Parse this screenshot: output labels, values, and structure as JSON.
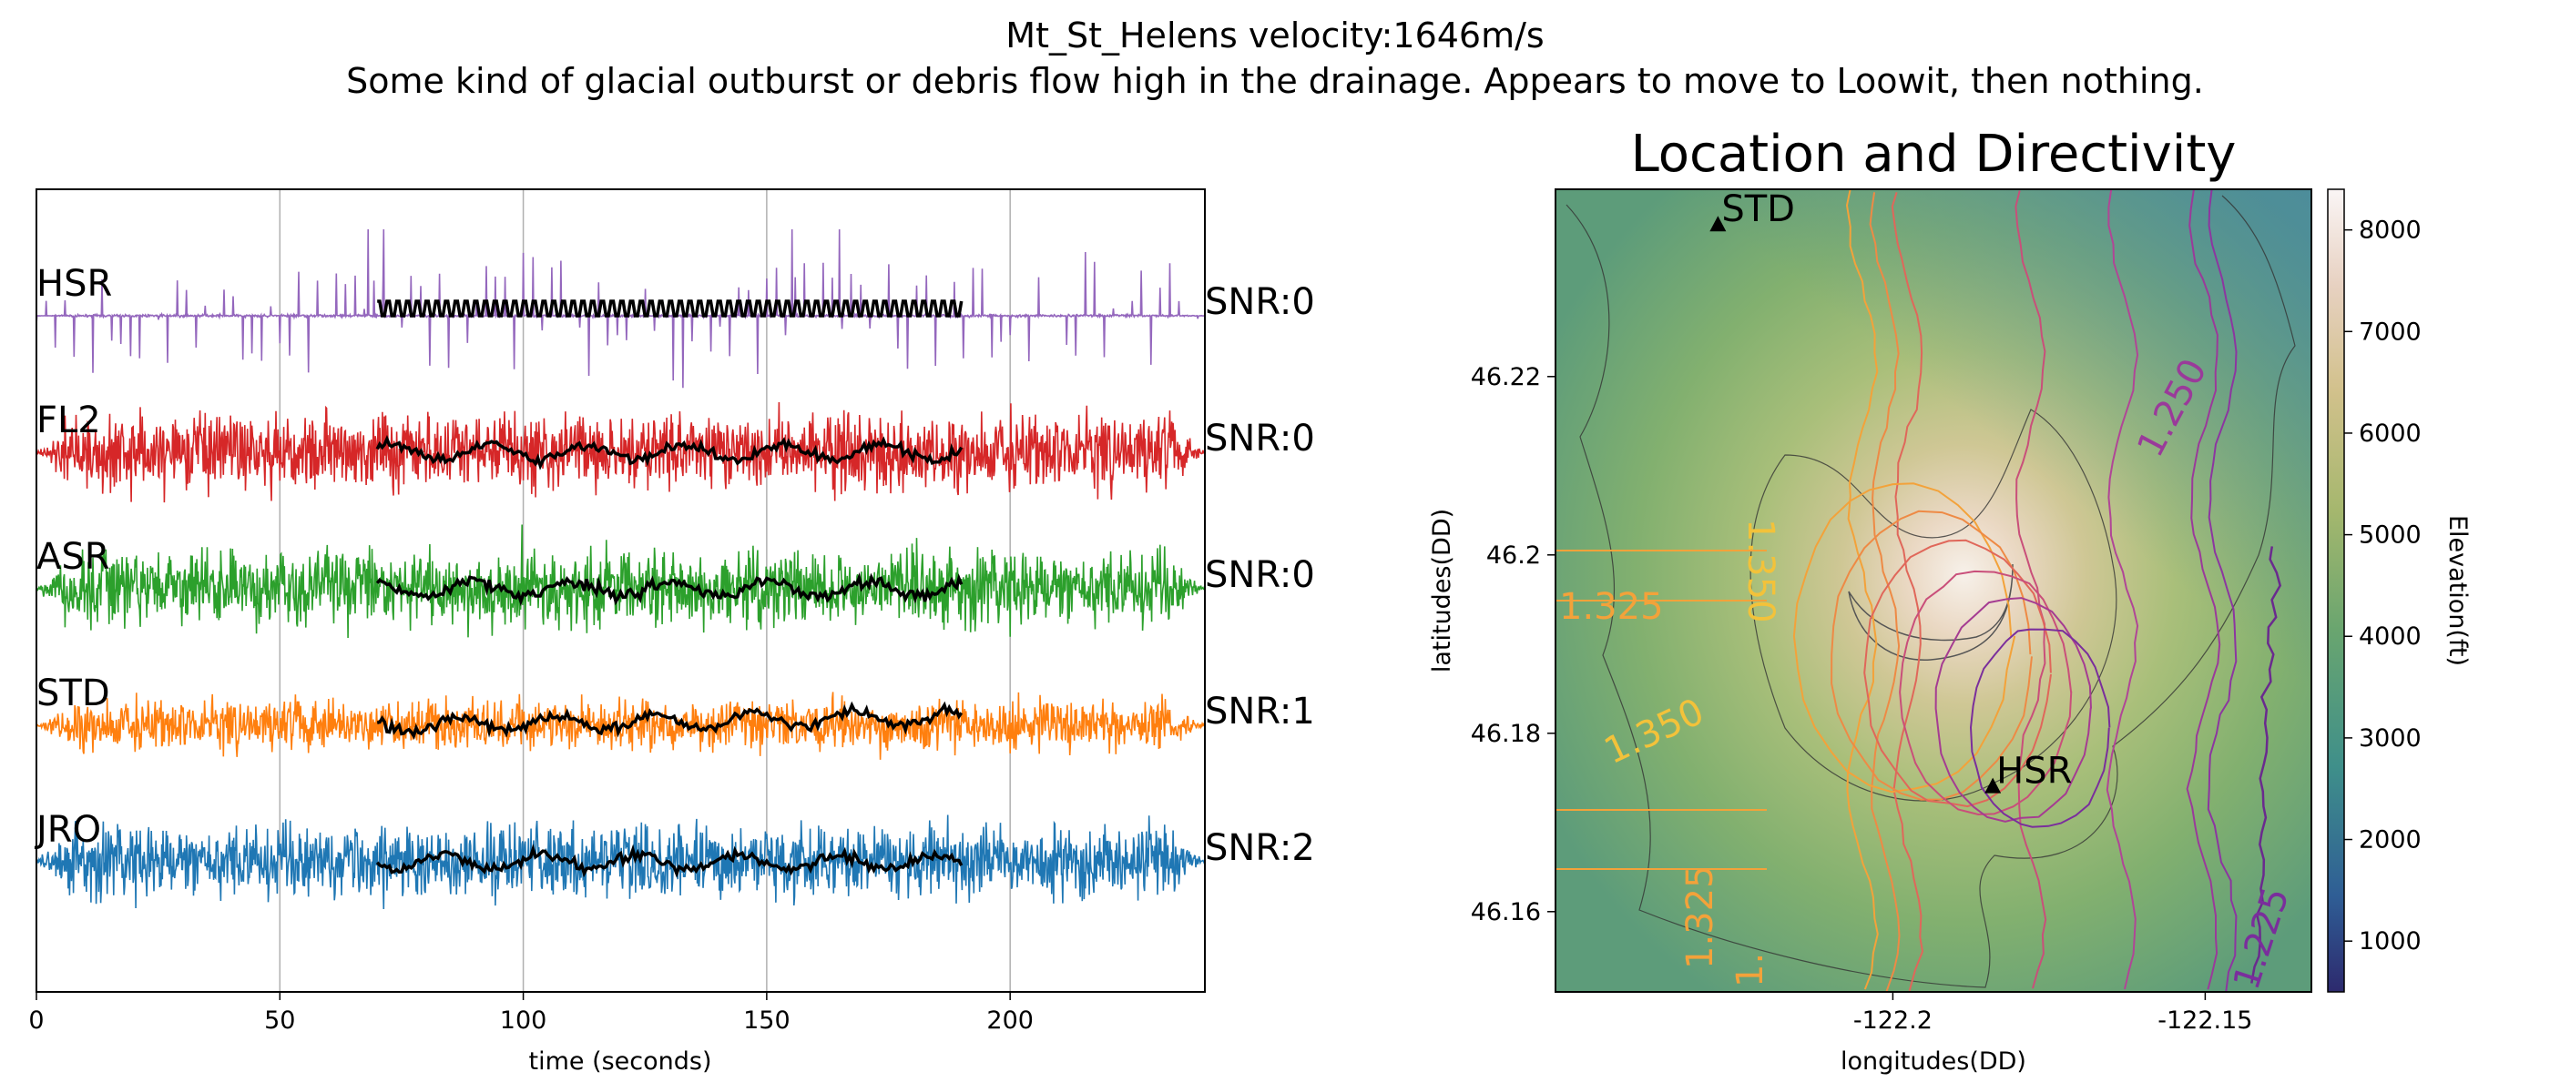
{
  "suptitle": {
    "line1": "Mt_St_Helens velocity:1646m/s",
    "line2": "Some kind of glacial outburst or debris flow high in the drainage.  Appears to move to Loowit, then nothing."
  },
  "chart_data": [
    {
      "type": "line",
      "title": "",
      "xlabel": "time (seconds)",
      "ylabel": "",
      "xlim": [
        0,
        240
      ],
      "xticks": [
        "0",
        "50",
        "100",
        "150",
        "200"
      ],
      "grid": "vertical",
      "envelope_window": [
        70,
        190
      ],
      "series": [
        {
          "name": "HSR",
          "snr": "SNR:0",
          "color": "#9467bd",
          "offset": 4,
          "style": "spiky"
        },
        {
          "name": "FL2",
          "snr": "SNR:0",
          "color": "#d62728",
          "offset": 3,
          "style": "noise"
        },
        {
          "name": "ASR",
          "snr": "SNR:0",
          "color": "#2ca02c",
          "offset": 2,
          "style": "noise"
        },
        {
          "name": "STD",
          "snr": "SNR:1",
          "color": "#ff7f0e",
          "offset": 1,
          "style": "noise"
        },
        {
          "name": "JRO",
          "snr": "SNR:2",
          "color": "#1f77b4",
          "offset": 0,
          "style": "noise"
        }
      ],
      "envelope_color": "#000000"
    },
    {
      "type": "heatmap",
      "title": "Location and Directivity",
      "xlabel": "longitudes(DD)",
      "ylabel": "latitudes(DD)",
      "xticks": [
        "-122.2",
        "-122.15"
      ],
      "yticks": [
        "46.22",
        "46.2",
        "46.18",
        "46.16"
      ],
      "colorbar": {
        "label": "Elevation(ft)",
        "ticks": [
          "1000",
          "2000",
          "3000",
          "4000",
          "5000",
          "6000",
          "7000",
          "8000"
        ],
        "range": [
          500,
          8400
        ]
      },
      "stations": [
        {
          "name": "STD",
          "lon": -122.228,
          "lat": 46.237
        },
        {
          "name": "HSR",
          "lon": -122.184,
          "lat": 46.174
        }
      ],
      "contour_labels": [
        "1.325",
        "1.350",
        "1.350",
        "1.250",
        "1.325",
        "1.225",
        "1."
      ]
    }
  ]
}
